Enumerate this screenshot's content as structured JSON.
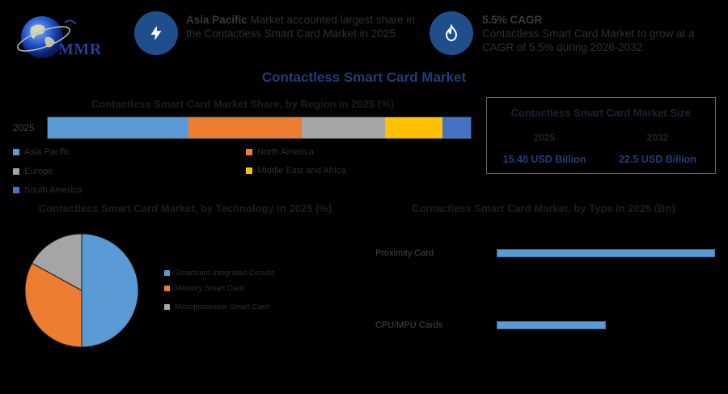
{
  "brand": {
    "logo_text": "MMR"
  },
  "info_boxes": [
    {
      "icon": "bolt-icon",
      "bold": "Asia Pacific",
      "text": " Market accounted largest share in the Contactless Smart Card Market in 2025."
    },
    {
      "icon": "flame-icon",
      "bold": "5.5% CAGR",
      "text": "Contactless Smart Card Market to grow at a CAGR of 5.5% during 2026-2032"
    }
  ],
  "main_title": "Contactless Smart Card Market",
  "region_section": {
    "title": "Contactless Smart Card Market Share, by Region in 2025 (%)",
    "year_label": "2025",
    "legend": [
      {
        "label": "Asia Pacific"
      },
      {
        "label": "North America"
      },
      {
        "label": "Europe"
      },
      {
        "label": "Middle East and Africa"
      },
      {
        "label": "South America"
      }
    ]
  },
  "size_box": {
    "title": "Contactless Smart Card Market Size",
    "year_a": "2025",
    "year_b": "2032",
    "value_a": "15.48 USD Billion",
    "value_b": "22.5 USD Billion"
  },
  "technology_section": {
    "title": "Contactless Smart Card Market, by Technology in 2025 (%)",
    "legend": [
      {
        "label": "Smartcard Integrated Circuits"
      },
      {
        "label": "Memory Smart Card"
      },
      {
        "label": "Microprocessor Smart Card"
      }
    ]
  },
  "type_section": {
    "title": "Contactless Smart Card Market, by Type in 2025 (Bn)",
    "labels": [
      "Proximity Card",
      "CPU/MPU Cards"
    ]
  },
  "colors": {
    "blue": "#5b9bd5",
    "orange": "#ed7d31",
    "gray": "#a5a5a5",
    "yellow": "#ffc000",
    "darkblue": "#4472c4"
  },
  "chart_data": [
    {
      "type": "bar",
      "stacked": true,
      "orientation": "horizontal",
      "title": "Contactless Smart Card Market Share, by Region in 2025 (%)",
      "categories": [
        "2025"
      ],
      "series": [
        {
          "name": "Asia Pacific",
          "values": [
            33.3
          ],
          "color": "#5b9bd5"
        },
        {
          "name": "North America",
          "values": [
            26.7
          ],
          "color": "#ed7d31"
        },
        {
          "name": "Europe",
          "values": [
            19.8
          ],
          "color": "#a5a5a5"
        },
        {
          "name": "Middle East and Africa",
          "values": [
            13.5
          ],
          "color": "#ffc000"
        },
        {
          "name": "South America",
          "values": [
            6.7
          ],
          "color": "#4472c4"
        }
      ],
      "legend": "bottom"
    },
    {
      "type": "pie",
      "title": "Contactless Smart Card Market, by Technology in 2025 (%)",
      "labels": [
        "Smartcard Integrated Circuits",
        "Memory Smart Card",
        "Microprocessor Smart Card"
      ],
      "values": [
        50,
        33,
        17
      ],
      "colors": [
        "#5b9bd5",
        "#ed7d31",
        "#a5a5a5"
      ],
      "legend": "right"
    },
    {
      "type": "bar",
      "orientation": "horizontal",
      "title": "Contactless Smart Card Market, by Type in 2025 (Bn)",
      "categories": [
        "Proximity Card",
        "CPU/MPU Cards"
      ],
      "values": [
        10.0,
        5.0
      ],
      "color": "#5b9bd5"
    }
  ]
}
